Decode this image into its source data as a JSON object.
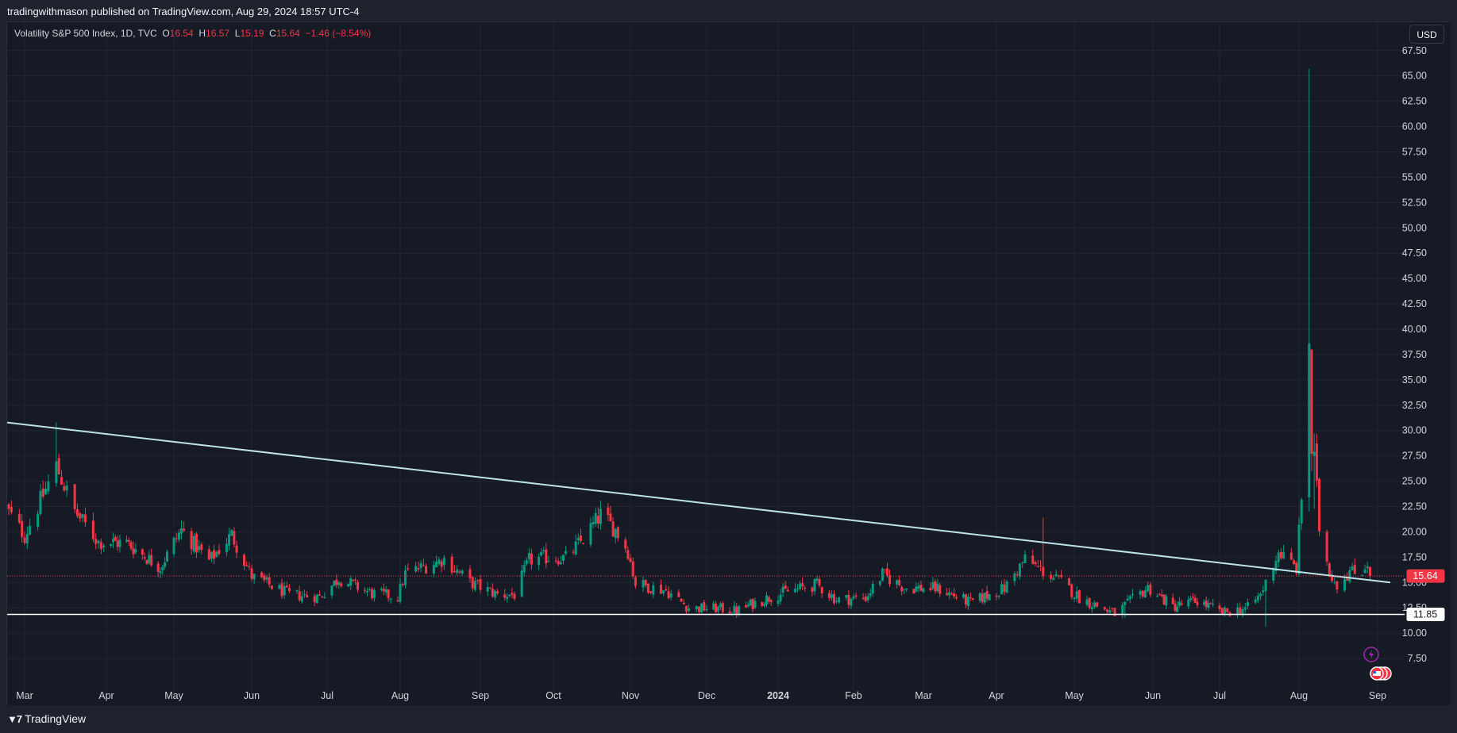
{
  "header": {
    "publisher": "tradingwithmason published on TradingView.com, Aug 29, 2024 18:57 UTC-4"
  },
  "legend": {
    "symbol": "Volatility S&P 500 Index, 1D, TVC",
    "open_label": "O",
    "open": "16.54",
    "high_label": "H",
    "high": "16.57",
    "low_label": "L",
    "low": "15.19",
    "close_label": "C",
    "close": "15.64",
    "change": "−1.46 (−8.54%)"
  },
  "currency_button": "USD",
  "footer": {
    "brand": "TradingView"
  },
  "colors": {
    "background": "#161a25",
    "grid": "#232632",
    "up": "#089981",
    "down": "#f23645",
    "trendline": "#bfe3ea",
    "support": "#ffffff",
    "last_price": "#f23645"
  },
  "chart_data": {
    "type": "candlestick",
    "y_ticks": [
      "7.50",
      "10.00",
      "12.50",
      "15.00",
      "17.50",
      "20.00",
      "22.50",
      "25.00",
      "27.50",
      "30.00",
      "32.50",
      "35.00",
      "37.50",
      "40.00",
      "42.50",
      "45.00",
      "47.50",
      "50.00",
      "52.50",
      "55.00",
      "57.50",
      "60.00",
      "62.50",
      "65.00",
      "67.50"
    ],
    "ylim": [
      5.0,
      70.3
    ],
    "x_ticks": [
      {
        "label": "Mar",
        "date": "2023-03-01",
        "bold": false
      },
      {
        "label": "Apr",
        "date": "2023-04-01",
        "bold": false
      },
      {
        "label": "May",
        "date": "2023-05-01",
        "bold": false
      },
      {
        "label": "Jun",
        "date": "2023-06-01",
        "bold": false
      },
      {
        "label": "Jul",
        "date": "2023-07-01",
        "bold": false
      },
      {
        "label": "Aug",
        "date": "2023-08-01",
        "bold": false
      },
      {
        "label": "Sep",
        "date": "2023-09-01",
        "bold": false
      },
      {
        "label": "Oct",
        "date": "2023-10-01",
        "bold": false
      },
      {
        "label": "Nov",
        "date": "2023-11-01",
        "bold": false
      },
      {
        "label": "Dec",
        "date": "2023-12-01",
        "bold": false
      },
      {
        "label": "2024",
        "date": "2024-01-01",
        "bold": true
      },
      {
        "label": "Feb",
        "date": "2024-02-01",
        "bold": false
      },
      {
        "label": "Mar",
        "date": "2024-03-01",
        "bold": false
      },
      {
        "label": "Apr",
        "date": "2024-04-01",
        "bold": false
      },
      {
        "label": "May",
        "date": "2024-05-01",
        "bold": false
      },
      {
        "label": "Jun",
        "date": "2024-06-01",
        "bold": false
      },
      {
        "label": "Jul",
        "date": "2024-07-01",
        "bold": false
      },
      {
        "label": "Aug",
        "date": "2024-08-01",
        "bold": false
      },
      {
        "label": "Sep",
        "date": "2024-09-01",
        "bold": false
      }
    ],
    "anchors": [
      [
        "2023-02-22",
        22.3
      ],
      [
        "2023-03-01",
        19.6
      ],
      [
        "2023-03-13",
        26.5
      ],
      [
        "2023-03-20",
        22.0
      ],
      [
        "2023-03-29",
        19.0
      ],
      [
        "2023-04-10",
        18.9
      ],
      [
        "2023-04-25",
        16.5
      ],
      [
        "2023-05-04",
        20.2
      ],
      [
        "2023-05-15",
        17.1
      ],
      [
        "2023-05-24",
        19.7
      ],
      [
        "2023-06-01",
        15.6
      ],
      [
        "2023-06-16",
        13.8
      ],
      [
        "2023-06-28",
        13.6
      ],
      [
        "2023-07-06",
        15.4
      ],
      [
        "2023-07-20",
        13.9
      ],
      [
        "2023-07-31",
        13.6
      ],
      [
        "2023-08-03",
        15.9
      ],
      [
        "2023-08-18",
        17.3
      ],
      [
        "2023-08-28",
        15.0
      ],
      [
        "2023-09-08",
        13.8
      ],
      [
        "2023-09-15",
        13.8
      ],
      [
        "2023-09-21",
        17.2
      ],
      [
        "2023-09-29",
        17.5
      ],
      [
        "2023-10-06",
        17.4
      ],
      [
        "2023-10-13",
        19.3
      ],
      [
        "2023-10-20",
        21.7
      ],
      [
        "2023-10-26",
        20.2
      ],
      [
        "2023-10-31",
        18.1
      ],
      [
        "2023-11-03",
        14.9
      ],
      [
        "2023-11-15",
        14.2
      ],
      [
        "2023-11-24",
        12.5
      ],
      [
        "2023-12-08",
        12.4
      ],
      [
        "2023-12-14",
        12.2
      ],
      [
        "2023-12-22",
        13.0
      ],
      [
        "2024-01-03",
        14.0
      ],
      [
        "2024-01-17",
        14.8
      ],
      [
        "2024-01-25",
        13.3
      ],
      [
        "2024-02-06",
        13.5
      ],
      [
        "2024-02-13",
        15.8
      ],
      [
        "2024-02-22",
        14.5
      ],
      [
        "2024-03-07",
        14.4
      ],
      [
        "2024-03-21",
        13.0
      ],
      [
        "2024-04-04",
        14.4
      ],
      [
        "2024-04-12",
        17.3
      ],
      [
        "2024-04-19",
        16.1
      ],
      [
        "2024-04-26",
        15.0
      ],
      [
        "2024-05-03",
        13.5
      ],
      [
        "2024-05-17",
        11.9
      ],
      [
        "2024-05-30",
        14.5
      ],
      [
        "2024-06-10",
        12.6
      ],
      [
        "2024-06-21",
        13.2
      ],
      [
        "2024-07-02",
        12.0
      ],
      [
        "2024-07-12",
        12.5
      ],
      [
        "2024-07-17",
        13.8
      ],
      [
        "2024-07-24",
        18.0
      ],
      [
        "2024-07-31",
        16.4
      ],
      [
        "2024-08-02",
        23.4
      ],
      [
        "2024-08-05",
        38.6
      ],
      [
        "2024-08-06",
        27.7
      ],
      [
        "2024-08-07",
        27.9
      ],
      [
        "2024-08-09",
        20.4
      ],
      [
        "2024-08-13",
        16.1
      ],
      [
        "2024-08-16",
        14.8
      ],
      [
        "2024-08-21",
        16.1
      ],
      [
        "2024-08-23",
        15.9
      ],
      [
        "2024-08-26",
        16.2
      ],
      [
        "2024-08-28",
        17.1
      ],
      [
        "2024-08-29",
        15.64
      ]
    ],
    "extreme_highs": [
      [
        "2023-03-13",
        30.8
      ],
      [
        "2023-10-20",
        23.1
      ],
      [
        "2024-04-19",
        21.4
      ],
      [
        "2024-08-05",
        65.7
      ],
      [
        "2024-08-07",
        29.7
      ],
      [
        "2024-08-06",
        34.9
      ]
    ],
    "extreme_lows": [
      [
        "2024-07-19",
        10.6
      ],
      [
        "2024-05-21",
        11.5
      ]
    ],
    "last_candle": {
      "date": "2024-08-29",
      "open": 16.54,
      "high": 16.57,
      "low": 15.19,
      "close": 15.64
    },
    "trendline": {
      "start": [
        "2023-02-22",
        30.8
      ],
      "end": [
        "2024-09-06",
        15.0
      ]
    },
    "horizontal_line": {
      "value": 11.85,
      "label": "11.85"
    },
    "last_price_label": "15.64"
  }
}
